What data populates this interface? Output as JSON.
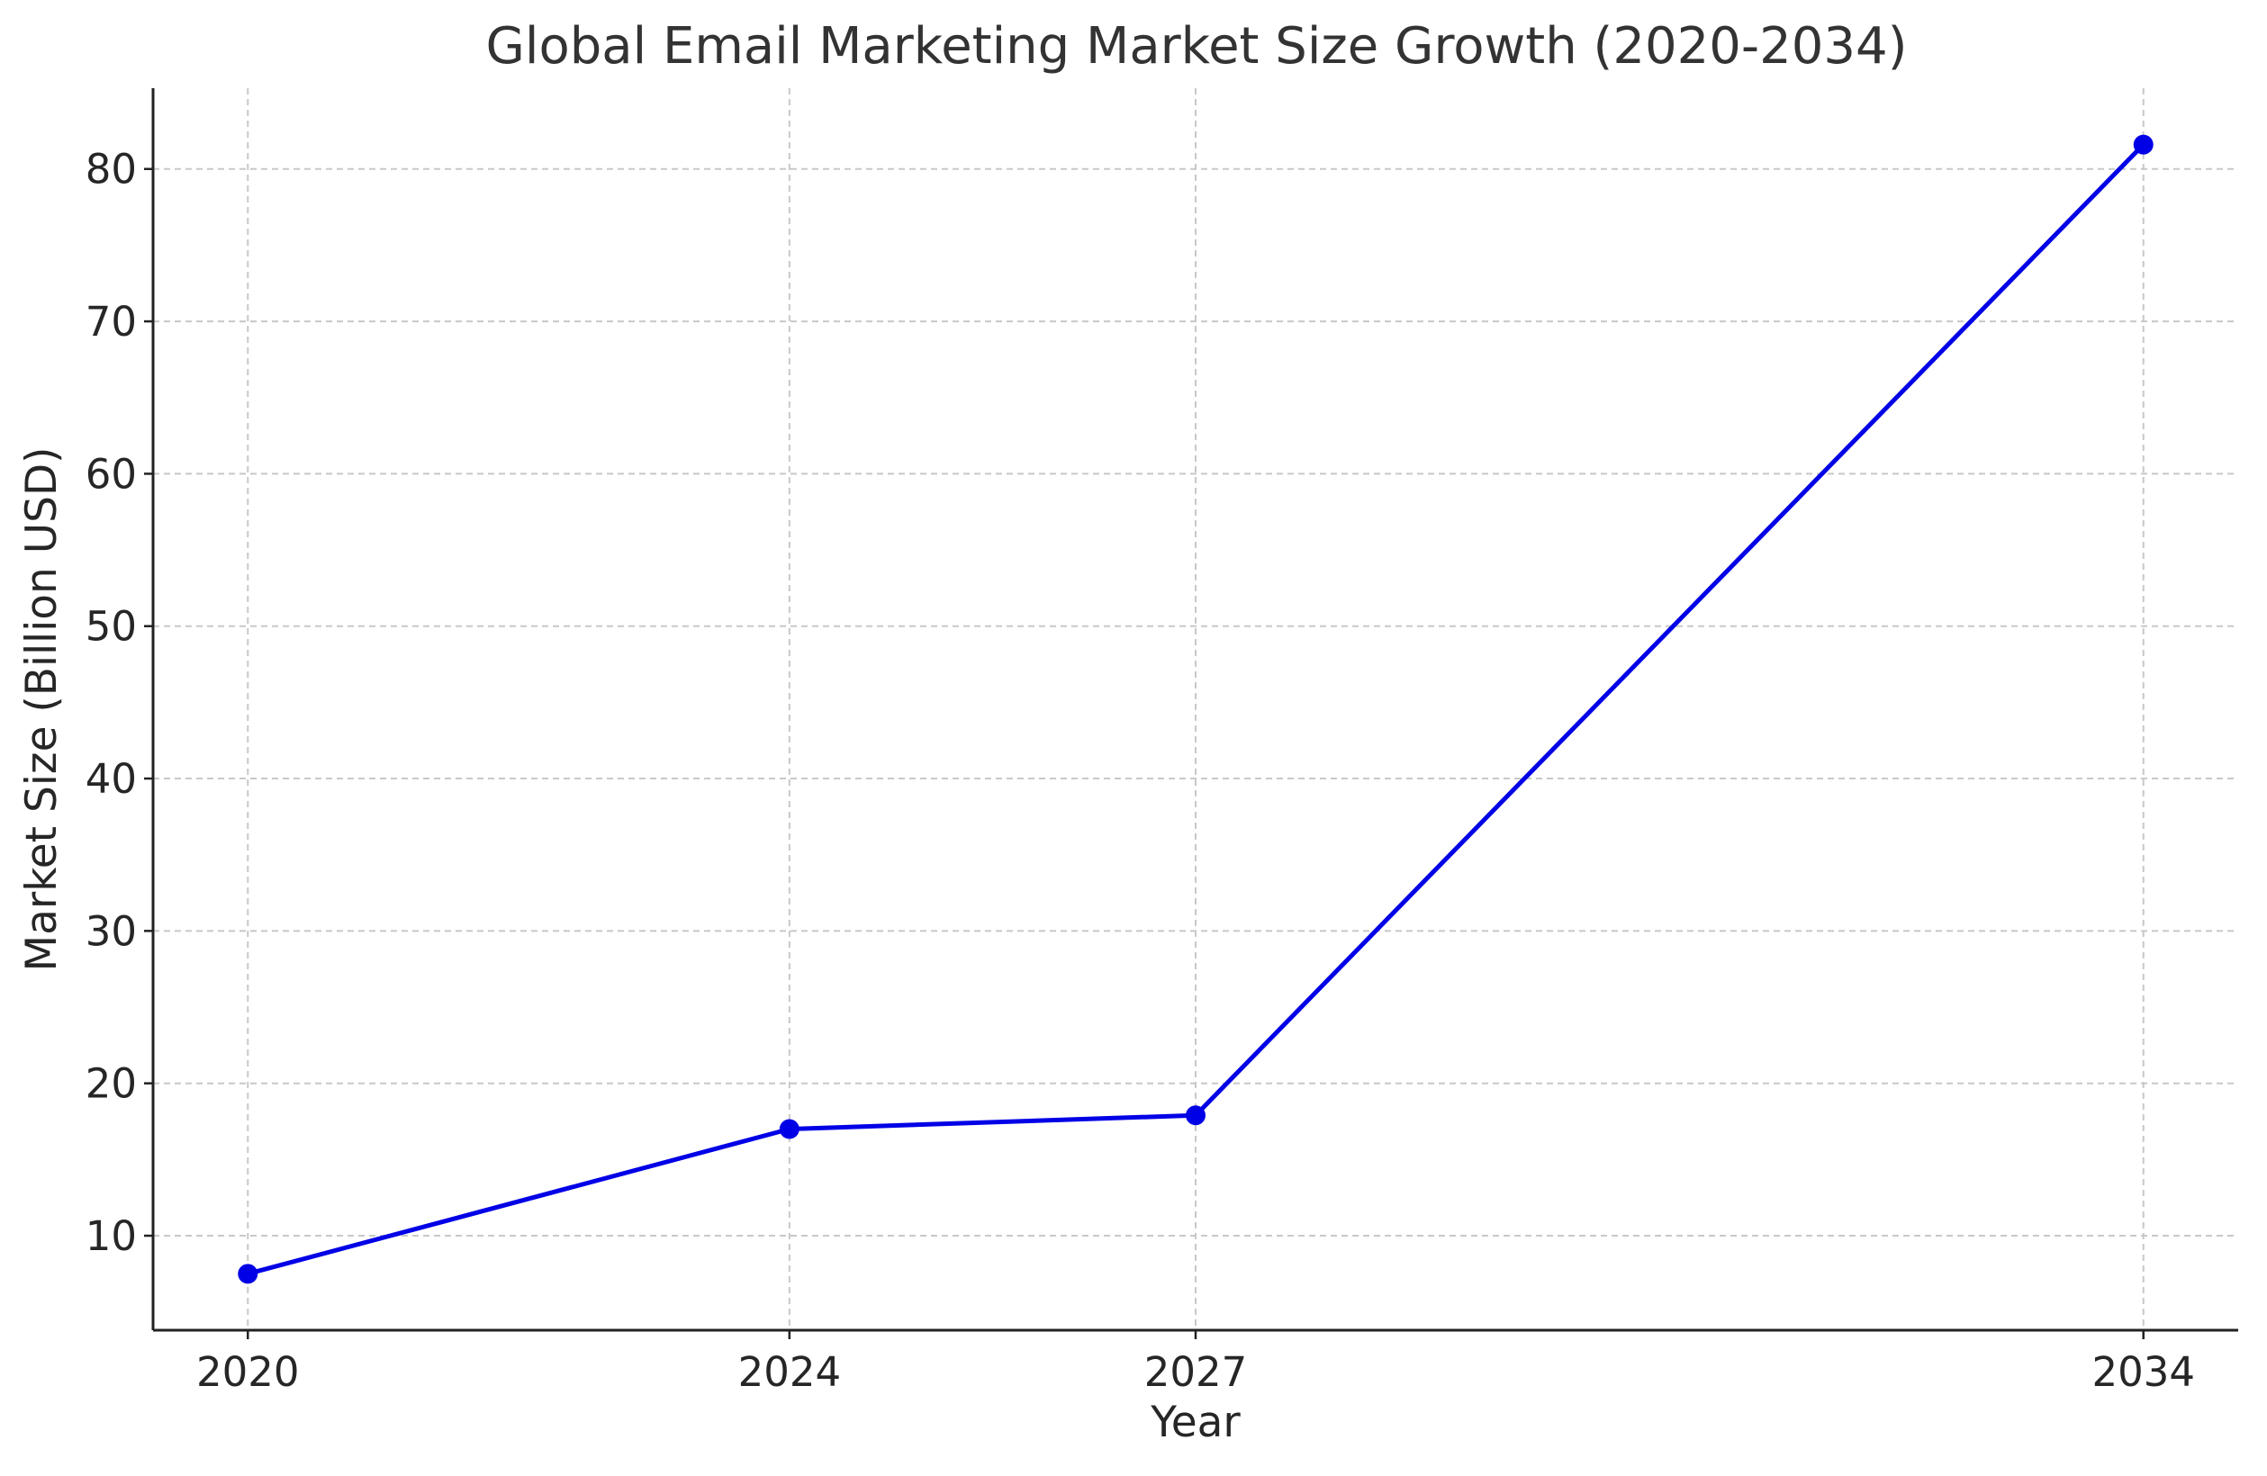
{
  "chart_data": {
    "type": "line",
    "title": "Global Email Marketing Market Size Growth (2020-2034)",
    "x_label": "Year",
    "y_label": "Market Size (Billion USD)",
    "x": [
      2020,
      2024,
      2027,
      2034
    ],
    "series": [
      {
        "color": "#0000e6",
        "values": [
          7.5,
          17,
          17.9,
          81.6
        ]
      }
    ],
    "xlim": [
      2019.3,
      2034.7
    ],
    "xticks": [
      2020,
      2024,
      2027,
      2034
    ],
    "ylim": [
      3.8,
      85.3
    ],
    "yticks": [
      10,
      20,
      30,
      40,
      50,
      60,
      70,
      80
    ],
    "grid": true
  }
}
